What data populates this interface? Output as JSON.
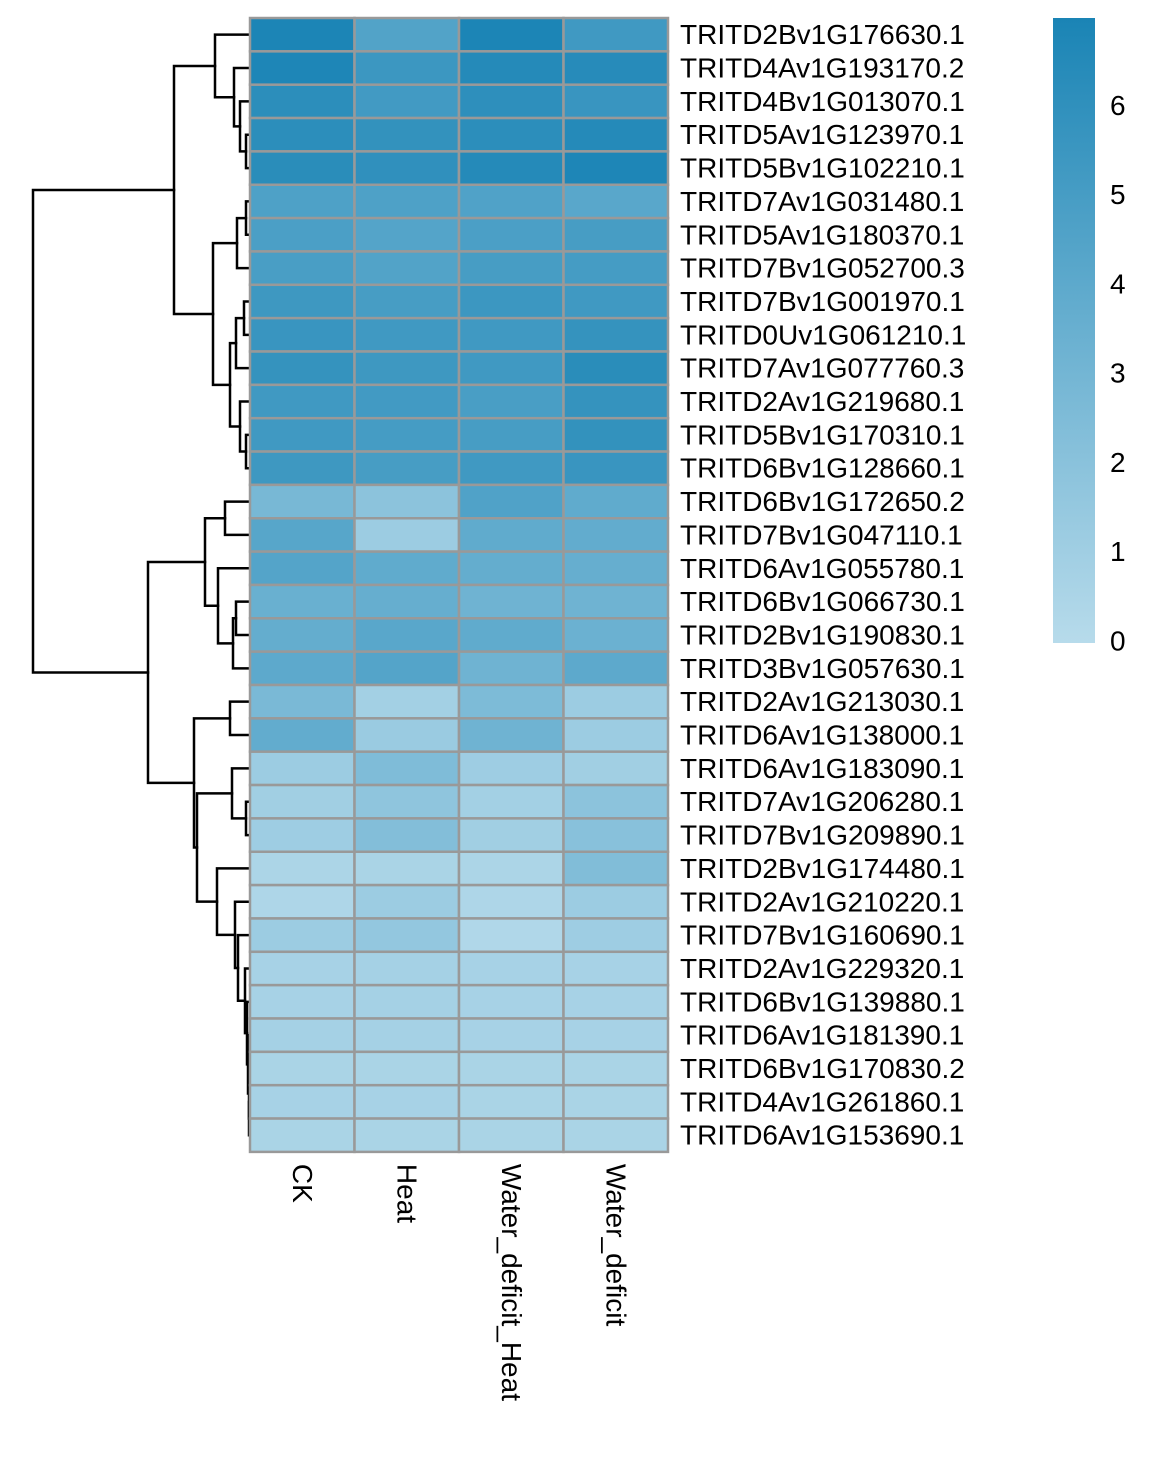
{
  "chart_data": {
    "type": "heatmap",
    "title": "",
    "columns": [
      "CK",
      "Heat",
      "Water_deficit_Heat",
      "Water_deficit"
    ],
    "rows": [
      "TRITD2Bv1G176630.1",
      "TRITD4Av1G193170.2",
      "TRITD4Bv1G013070.1",
      "TRITD5Av1G123970.1",
      "TRITD5Bv1G102210.1",
      "TRITD7Av1G031480.1",
      "TRITD5Av1G180370.1",
      "TRITD7Bv1G052700.3",
      "TRITD7Bv1G001970.1",
      "TRITD0Uv1G061210.1",
      "TRITD7Av1G077760.3",
      "TRITD2Av1G219680.1",
      "TRITD5Bv1G170310.1",
      "TRITD6Bv1G128660.1",
      "TRITD6Bv1G172650.2",
      "TRITD7Bv1G047110.1",
      "TRITD6Av1G055780.1",
      "TRITD6Bv1G066730.1",
      "TRITD2Bv1G190830.1",
      "TRITD3Bv1G057630.1",
      "TRITD2Av1G213030.1",
      "TRITD6Av1G138000.1",
      "TRITD6Av1G183090.1",
      "TRITD7Av1G206280.1",
      "TRITD7Bv1G209890.1",
      "TRITD2Bv1G174480.1",
      "TRITD2Av1G210220.1",
      "TRITD7Bv1G160690.1",
      "TRITD2Av1G229320.1",
      "TRITD6Bv1G139880.1",
      "TRITD6Av1G181390.1",
      "TRITD6Bv1G170830.2",
      "TRITD4Av1G261860.1",
      "TRITD6Av1G153690.1"
    ],
    "values": [
      [
        6.9,
        4.5,
        6.9,
        5.3
      ],
      [
        6.8,
        5.5,
        6.5,
        6.4
      ],
      [
        6.2,
        5.2,
        6.1,
        5.6
      ],
      [
        6.2,
        5.9,
        6.2,
        6.5
      ],
      [
        6.3,
        6.0,
        6.5,
        6.8
      ],
      [
        4.7,
        4.7,
        4.6,
        4.2
      ],
      [
        4.8,
        4.4,
        4.8,
        5.0
      ],
      [
        4.9,
        4.5,
        5.0,
        5.1
      ],
      [
        5.4,
        5.0,
        5.5,
        5.3
      ],
      [
        5.6,
        5.3,
        5.3,
        5.8
      ],
      [
        5.8,
        5.4,
        5.3,
        6.3
      ],
      [
        5.3,
        5.2,
        4.9,
        5.8
      ],
      [
        5.3,
        5.1,
        5.0,
        5.9
      ],
      [
        5.4,
        5.0,
        5.3,
        5.6
      ],
      [
        2.8,
        1.9,
        4.6,
        3.9
      ],
      [
        4.3,
        1.2,
        3.9,
        3.8
      ],
      [
        4.4,
        3.9,
        3.7,
        3.6
      ],
      [
        3.5,
        3.6,
        3.2,
        3.2
      ],
      [
        3.7,
        4.2,
        3.9,
        3.4
      ],
      [
        4.0,
        4.4,
        3.2,
        4.0
      ],
      [
        2.7,
        0.9,
        2.6,
        1.2
      ],
      [
        3.8,
        1.3,
        3.2,
        1.2
      ],
      [
        1.2,
        2.5,
        1.1,
        1.0
      ],
      [
        1.0,
        1.8,
        0.9,
        1.9
      ],
      [
        1.1,
        2.3,
        1.0,
        2.1
      ],
      [
        0.5,
        0.6,
        0.5,
        2.4
      ],
      [
        0.4,
        1.2,
        0.4,
        1.2
      ],
      [
        1.2,
        1.6,
        0.3,
        1.1
      ],
      [
        0.7,
        0.8,
        0.7,
        0.7
      ],
      [
        0.7,
        0.8,
        0.7,
        0.7
      ],
      [
        0.8,
        0.8,
        0.7,
        0.7
      ],
      [
        0.6,
        0.6,
        0.6,
        0.6
      ],
      [
        0.7,
        0.7,
        0.6,
        0.6
      ],
      [
        0.6,
        0.6,
        0.6,
        0.6
      ]
    ],
    "color_scale": {
      "min": 0,
      "max": 7,
      "low_color": "#b7dbeb",
      "high_color": "#1a84b5",
      "ticks": [
        0,
        1,
        2,
        3,
        4,
        5,
        6
      ]
    },
    "cell_border_color": "#999999",
    "row_dendrogram": true,
    "legend_position": "right"
  }
}
